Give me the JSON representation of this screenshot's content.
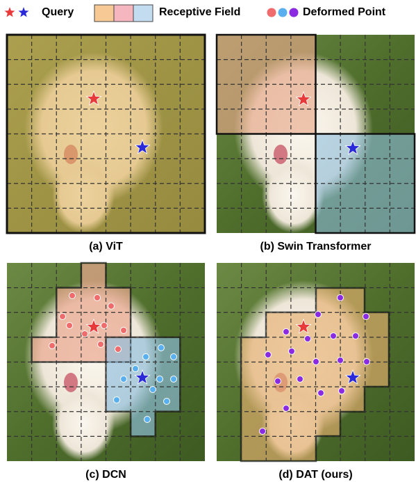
{
  "legend": {
    "query": "Query",
    "receptive_field": "Receptive Field",
    "deformed_point": "Deformed Point"
  },
  "panels": [
    {
      "caption": "(a) ViT"
    },
    {
      "caption": "(b) Swin Transformer"
    },
    {
      "caption": "(c) DCN"
    },
    {
      "caption": "(d) DAT (ours)"
    }
  ]
}
